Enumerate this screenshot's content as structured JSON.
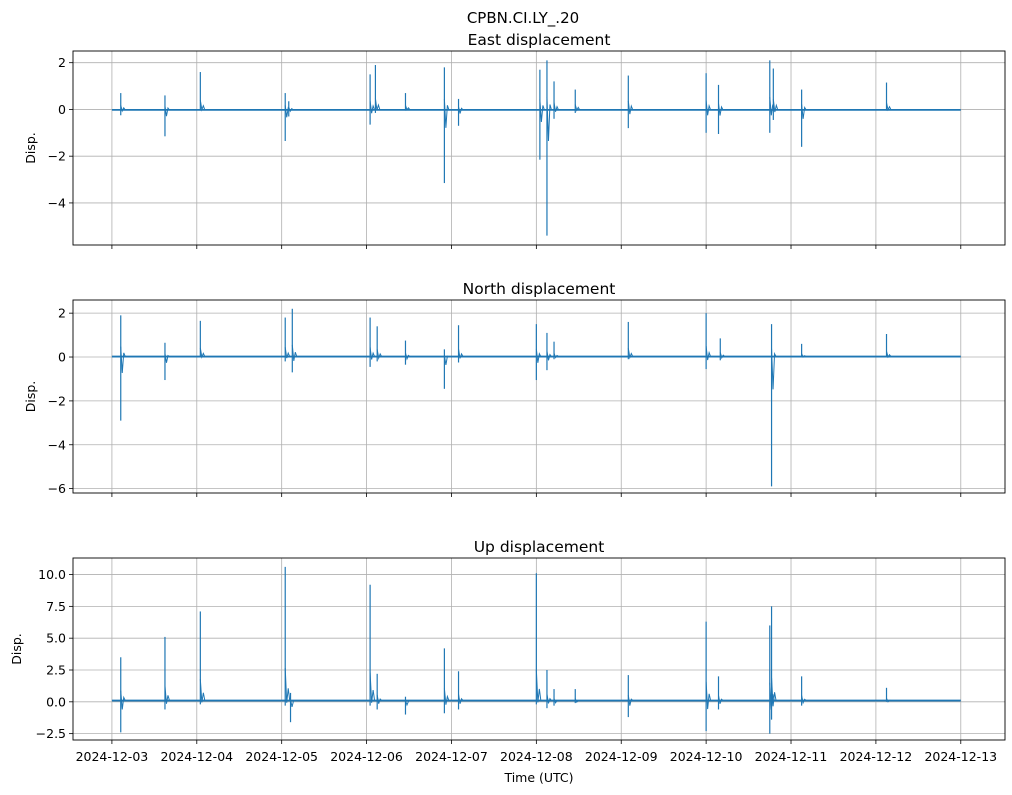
{
  "suptitle": "CPBN.CI.LY_.20",
  "xlabel": "Time (UTC)",
  "x_tick_labels": [
    "2024-12-03",
    "2024-12-04",
    "2024-12-05",
    "2024-12-06",
    "2024-12-07",
    "2024-12-08",
    "2024-12-09",
    "2024-12-10",
    "2024-12-11",
    "2024-12-12",
    "2024-12-13"
  ],
  "line_color": "#1f77b4",
  "grid_color": "#b0b0b0",
  "chart_data": [
    {
      "type": "line",
      "title": "East displacement",
      "ylabel": "Disp.",
      "grid": true,
      "ylim": [
        -5.8,
        2.5
      ],
      "yticks": [
        2,
        0,
        -2,
        -4
      ],
      "ytick_labels": [
        "2",
        "0",
        "−2",
        "−4"
      ],
      "xlim": [
        "2024-12-02T13:00",
        "2024-12-13T12:30"
      ],
      "baseline": -0.02,
      "series": [
        {
          "spikes": [
            {
              "t": "2024-12-03T02:30",
              "max": 0.7,
              "min": -0.25
            },
            {
              "t": "2024-12-03T15:00",
              "max": 0.6,
              "min": -1.15
            },
            {
              "t": "2024-12-04T01:00",
              "max": 1.6,
              "min": -0.05
            },
            {
              "t": "2024-12-05T01:00",
              "max": 0.7,
              "min": -1.35
            },
            {
              "t": "2024-12-05T02:00",
              "max": 0.35,
              "min": -0.3
            },
            {
              "t": "2024-12-06T01:00",
              "max": 1.5,
              "min": -0.65
            },
            {
              "t": "2024-12-06T02:30",
              "max": 1.9,
              "min": -0.15
            },
            {
              "t": "2024-12-06T11:00",
              "max": 0.7,
              "min": -0.05
            },
            {
              "t": "2024-12-06T22:00",
              "max": 1.8,
              "min": -3.15
            },
            {
              "t": "2024-12-07T02:00",
              "max": 0.45,
              "min": -0.7
            },
            {
              "t": "2024-12-08T01:00",
              "max": 1.7,
              "min": -2.15
            },
            {
              "t": "2024-12-08T03:00",
              "max": 2.1,
              "min": -5.4
            },
            {
              "t": "2024-12-08T05:00",
              "max": 1.2,
              "min": -0.4
            },
            {
              "t": "2024-12-08T11:00",
              "max": 0.85,
              "min": -0.15
            },
            {
              "t": "2024-12-09T02:00",
              "max": 1.45,
              "min": -0.8
            },
            {
              "t": "2024-12-10T00:00",
              "max": 1.55,
              "min": -1.0
            },
            {
              "t": "2024-12-10T03:30",
              "max": 1.05,
              "min": -1.05
            },
            {
              "t": "2024-12-10T18:00",
              "max": 2.1,
              "min": -1.0
            },
            {
              "t": "2024-12-10T19:00",
              "max": 1.75,
              "min": -0.45
            },
            {
              "t": "2024-12-11T03:00",
              "max": 0.85,
              "min": -1.6
            },
            {
              "t": "2024-12-12T03:00",
              "max": 1.15,
              "min": -0.05
            }
          ]
        }
      ]
    },
    {
      "type": "line",
      "title": "North displacement",
      "ylabel": "Disp.",
      "grid": true,
      "ylim": [
        -6.2,
        2.6
      ],
      "yticks": [
        2,
        0,
        -2,
        -4,
        -6
      ],
      "ytick_labels": [
        "2",
        "0",
        "−2",
        "−4",
        "−6"
      ],
      "xlim": [
        "2024-12-02T13:00",
        "2024-12-13T12:30"
      ],
      "baseline": 0.02,
      "series": [
        {
          "spikes": [
            {
              "t": "2024-12-03T02:30",
              "max": 1.9,
              "min": -2.9
            },
            {
              "t": "2024-12-03T15:00",
              "max": 0.65,
              "min": -1.05
            },
            {
              "t": "2024-12-04T01:00",
              "max": 1.65,
              "min": 0.0
            },
            {
              "t": "2024-12-05T01:00",
              "max": 1.8,
              "min": -0.2
            },
            {
              "t": "2024-12-05T03:00",
              "max": 2.2,
              "min": -0.7
            },
            {
              "t": "2024-12-06T01:00",
              "max": 1.8,
              "min": -0.45
            },
            {
              "t": "2024-12-06T03:00",
              "max": 1.4,
              "min": -0.2
            },
            {
              "t": "2024-12-06T11:00",
              "max": 0.75,
              "min": -0.35
            },
            {
              "t": "2024-12-06T22:00",
              "max": 0.35,
              "min": -1.45
            },
            {
              "t": "2024-12-07T02:00",
              "max": 1.45,
              "min": -0.25
            },
            {
              "t": "2024-12-08T00:00",
              "max": 1.5,
              "min": -1.05
            },
            {
              "t": "2024-12-08T03:00",
              "max": 1.1,
              "min": -0.6
            },
            {
              "t": "2024-12-08T05:00",
              "max": 0.7,
              "min": -0.1
            },
            {
              "t": "2024-12-09T02:00",
              "max": 1.6,
              "min": -0.1
            },
            {
              "t": "2024-12-10T00:00",
              "max": 2.0,
              "min": -0.55
            },
            {
              "t": "2024-12-10T04:00",
              "max": 0.85,
              "min": -0.15
            },
            {
              "t": "2024-12-10T18:30",
              "max": 1.5,
              "min": -5.9
            },
            {
              "t": "2024-12-11T03:00",
              "max": 0.6,
              "min": 0.0
            },
            {
              "t": "2024-12-12T03:00",
              "max": 1.05,
              "min": 0.0
            }
          ]
        }
      ]
    },
    {
      "type": "line",
      "title": "Up displacement",
      "ylabel": "Disp.",
      "grid": true,
      "ylim": [
        -3.0,
        11.3
      ],
      "yticks": [
        10.0,
        7.5,
        5.0,
        2.5,
        0.0,
        -2.5
      ],
      "ytick_labels": [
        "10.0",
        "7.5",
        "5.0",
        "2.5",
        "0.0",
        "−2.5"
      ],
      "xlim": [
        "2024-12-02T13:00",
        "2024-12-13T12:30"
      ],
      "baseline": 0.1,
      "series": [
        {
          "spikes": [
            {
              "t": "2024-12-03T02:30",
              "max": 3.5,
              "min": -2.4
            },
            {
              "t": "2024-12-03T15:00",
              "max": 5.1,
              "min": -0.6
            },
            {
              "t": "2024-12-04T01:00",
              "max": 7.1,
              "min": -0.2
            },
            {
              "t": "2024-12-05T01:00",
              "max": 10.6,
              "min": -0.3
            },
            {
              "t": "2024-12-05T02:30",
              "max": 0.7,
              "min": -1.6
            },
            {
              "t": "2024-12-06T01:00",
              "max": 9.2,
              "min": -0.3
            },
            {
              "t": "2024-12-06T03:00",
              "max": 2.2,
              "min": -0.6
            },
            {
              "t": "2024-12-06T11:00",
              "max": 0.4,
              "min": -1.0
            },
            {
              "t": "2024-12-06T22:00",
              "max": 4.2,
              "min": -0.9
            },
            {
              "t": "2024-12-07T02:00",
              "max": 2.4,
              "min": -0.6
            },
            {
              "t": "2024-12-08T00:00",
              "max": 10.1,
              "min": -0.2
            },
            {
              "t": "2024-12-08T03:00",
              "max": 2.5,
              "min": -0.5
            },
            {
              "t": "2024-12-08T05:00",
              "max": 1.0,
              "min": -0.3
            },
            {
              "t": "2024-12-08T11:00",
              "max": 1.0,
              "min": -0.1
            },
            {
              "t": "2024-12-09T02:00",
              "max": 2.1,
              "min": -1.2
            },
            {
              "t": "2024-12-10T00:00",
              "max": 6.3,
              "min": -2.3
            },
            {
              "t": "2024-12-10T03:30",
              "max": 2.0,
              "min": -0.6
            },
            {
              "t": "2024-12-10T18:00",
              "max": 6.0,
              "min": -2.5
            },
            {
              "t": "2024-12-10T18:30",
              "max": 7.5,
              "min": -1.4
            },
            {
              "t": "2024-12-11T03:00",
              "max": 2.0,
              "min": -0.3
            },
            {
              "t": "2024-12-12T03:00",
              "max": 1.1,
              "min": 0.0
            }
          ]
        }
      ]
    }
  ]
}
